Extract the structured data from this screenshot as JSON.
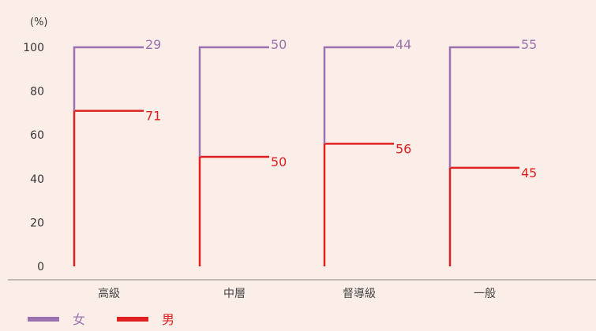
{
  "chart_data": {
    "type": "bar",
    "subtype": "100%-stacked step bars",
    "unit_label": "(%)",
    "categories": [
      "高級",
      "中層",
      "督導級",
      "一般"
    ],
    "series": [
      {
        "name": "女",
        "color": "#9b72b0",
        "values": [
          29,
          50,
          44,
          55
        ]
      },
      {
        "name": "男",
        "color": "#e02020",
        "values": [
          71,
          50,
          56,
          45
        ]
      }
    ],
    "ylim": [
      0,
      100
    ],
    "yticks": [
      0,
      20,
      40,
      60,
      80,
      100
    ],
    "grid": false,
    "legend_position": "bottom-left"
  },
  "colors": {
    "background": "#fbeee8",
    "axis": "#888888"
  }
}
